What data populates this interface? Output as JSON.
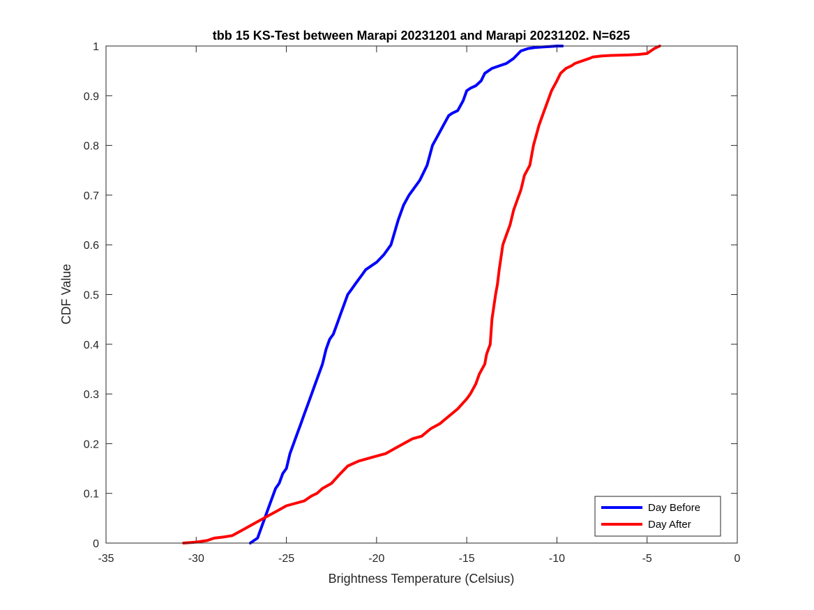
{
  "chart_data": {
    "type": "line",
    "title": "tbb 15 KS-Test between Marapi 20231201 and Marapi 20231202. N=625",
    "xlabel": "Brightness Temperature (Celsius)",
    "ylabel": "CDF Value",
    "xlim": [
      -35,
      0
    ],
    "ylim": [
      0,
      1
    ],
    "xticks": [
      -35,
      -30,
      -25,
      -20,
      -15,
      -10,
      -5,
      0
    ],
    "yticks": [
      0,
      0.1,
      0.2,
      0.3,
      0.4,
      0.5,
      0.6,
      0.7,
      0.8,
      0.9,
      1
    ],
    "grid": false,
    "legend_position": "bottom-right",
    "series": [
      {
        "name": "Day Before",
        "color": "#0000ff",
        "x": [
          -27.0,
          -26.8,
          -26.6,
          -26.4,
          -26.2,
          -26.0,
          -25.8,
          -25.6,
          -25.4,
          -25.2,
          -25.0,
          -24.8,
          -24.6,
          -24.4,
          -24.2,
          -24.0,
          -23.8,
          -23.6,
          -23.4,
          -23.2,
          -23.0,
          -22.8,
          -22.6,
          -22.4,
          -22.2,
          -22.0,
          -21.8,
          -21.6,
          -21.4,
          -21.2,
          -21.0,
          -20.8,
          -20.6,
          -20.4,
          -20.2,
          -20.0,
          -19.6,
          -19.2,
          -18.8,
          -18.5,
          -18.2,
          -18.0,
          -17.6,
          -17.2,
          -16.9,
          -16.6,
          -16.3,
          -16.0,
          -15.8,
          -15.5,
          -15.2,
          -15.0,
          -14.8,
          -14.5,
          -14.2,
          -14.0,
          -13.6,
          -13.2,
          -12.8,
          -12.4,
          -12.0,
          -11.6,
          -11.2,
          -10.8,
          -10.4,
          -10.0,
          -9.7
        ],
        "y": [
          0.0,
          0.005,
          0.01,
          0.03,
          0.05,
          0.07,
          0.09,
          0.11,
          0.12,
          0.14,
          0.15,
          0.18,
          0.2,
          0.22,
          0.24,
          0.26,
          0.28,
          0.3,
          0.32,
          0.34,
          0.36,
          0.39,
          0.41,
          0.42,
          0.44,
          0.46,
          0.48,
          0.5,
          0.51,
          0.52,
          0.53,
          0.54,
          0.55,
          0.555,
          0.56,
          0.565,
          0.58,
          0.6,
          0.65,
          0.68,
          0.7,
          0.71,
          0.73,
          0.76,
          0.8,
          0.82,
          0.84,
          0.86,
          0.865,
          0.87,
          0.89,
          0.91,
          0.915,
          0.92,
          0.93,
          0.945,
          0.955,
          0.96,
          0.965,
          0.975,
          0.99,
          0.995,
          0.997,
          0.998,
          0.999,
          1.0,
          1.0
        ]
      },
      {
        "name": "Day After",
        "color": "#ff0000",
        "x": [
          -30.7,
          -30.0,
          -29.4,
          -29.0,
          -28.5,
          -28.0,
          -27.5,
          -27.0,
          -26.5,
          -26.0,
          -25.5,
          -25.0,
          -24.5,
          -24.0,
          -23.6,
          -23.3,
          -23.0,
          -22.5,
          -22.0,
          -21.6,
          -21.0,
          -20.5,
          -20.0,
          -19.5,
          -19.0,
          -18.5,
          -18.0,
          -17.5,
          -17.0,
          -16.5,
          -16.0,
          -15.5,
          -15.0,
          -14.8,
          -14.5,
          -14.3,
          -14.0,
          -13.9,
          -13.7,
          -13.6,
          -13.4,
          -13.3,
          -13.2,
          -13.0,
          -12.8,
          -12.6,
          -12.4,
          -12.2,
          -12.0,
          -11.8,
          -11.5,
          -11.3,
          -11.0,
          -10.8,
          -10.5,
          -10.3,
          -10.0,
          -9.8,
          -9.5,
          -9.2,
          -9.0,
          -8.6,
          -8.2,
          -8.0,
          -7.5,
          -7.0,
          -6.0,
          -5.5,
          -5.0,
          -4.6,
          -4.3
        ],
        "y": [
          0.0,
          0.002,
          0.005,
          0.01,
          0.012,
          0.015,
          0.025,
          0.035,
          0.045,
          0.055,
          0.065,
          0.075,
          0.08,
          0.085,
          0.095,
          0.1,
          0.11,
          0.12,
          0.14,
          0.155,
          0.165,
          0.17,
          0.175,
          0.18,
          0.19,
          0.2,
          0.21,
          0.215,
          0.23,
          0.24,
          0.255,
          0.27,
          0.29,
          0.3,
          0.32,
          0.34,
          0.36,
          0.38,
          0.4,
          0.45,
          0.5,
          0.52,
          0.55,
          0.6,
          0.62,
          0.64,
          0.67,
          0.69,
          0.71,
          0.74,
          0.76,
          0.8,
          0.84,
          0.86,
          0.89,
          0.91,
          0.93,
          0.945,
          0.955,
          0.96,
          0.965,
          0.97,
          0.975,
          0.978,
          0.98,
          0.981,
          0.982,
          0.983,
          0.985,
          0.995,
          1.0
        ]
      }
    ]
  }
}
